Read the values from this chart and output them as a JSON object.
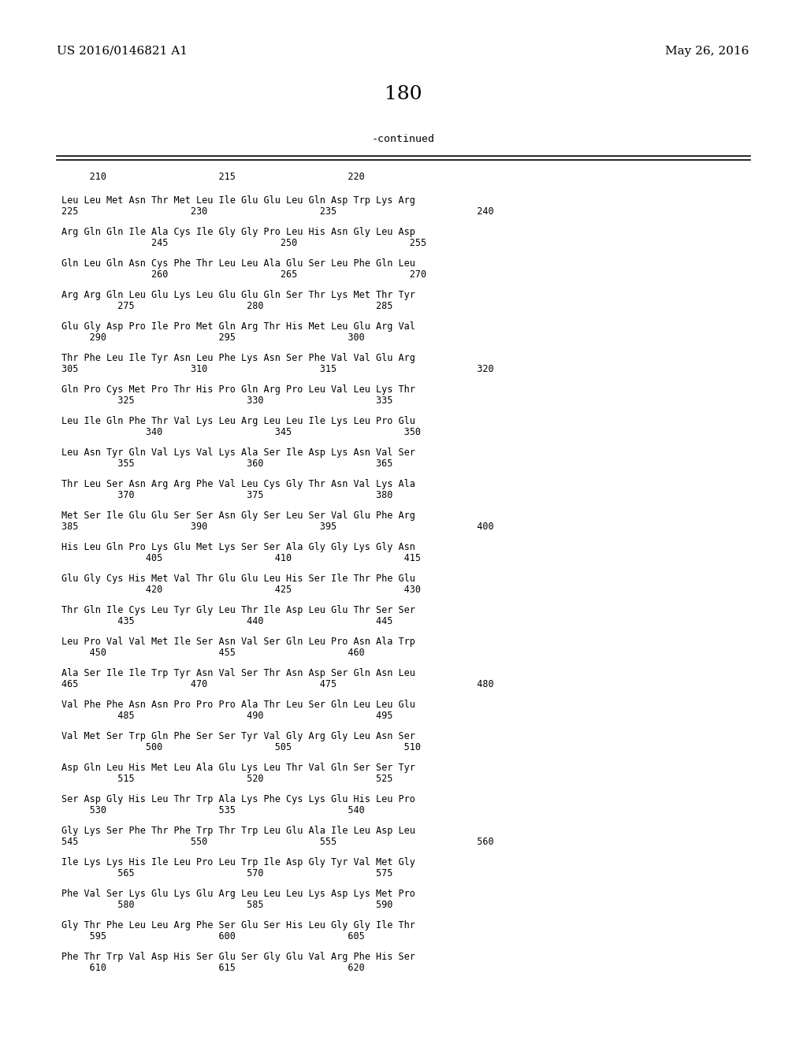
{
  "header_left": "US 2016/0146821 A1",
  "header_right": "May 26, 2016",
  "page_number": "180",
  "continued": "-continued",
  "background_color": "#ffffff",
  "ruler": "     210                    215                    220",
  "seq_lines": [
    [
      "Leu Leu Met Asn Thr Met Leu Ile Glu Glu Leu Gln Asp Trp Lys Arg",
      "225                    230                    235                         240"
    ],
    [
      "Arg Gln Gln Ile Ala Cys Ile Gly Gly Pro Leu His Asn Gly Leu Asp",
      "                245                    250                    255"
    ],
    [
      "Gln Leu Gln Asn Cys Phe Thr Leu Leu Ala Glu Ser Leu Phe Gln Leu",
      "                260                    265                    270"
    ],
    [
      "Arg Arg Gln Leu Glu Lys Leu Glu Glu Gln Ser Thr Lys Met Thr Tyr",
      "          275                    280                    285"
    ],
    [
      "Glu Gly Asp Pro Ile Pro Met Gln Arg Thr His Met Leu Glu Arg Val",
      "     290                    295                    300"
    ],
    [
      "Thr Phe Leu Ile Tyr Asn Leu Phe Lys Asn Ser Phe Val Val Glu Arg",
      "305                    310                    315                         320"
    ],
    [
      "Gln Pro Cys Met Pro Thr His Pro Gln Arg Pro Leu Val Leu Lys Thr",
      "          325                    330                    335"
    ],
    [
      "Leu Ile Gln Phe Thr Val Lys Leu Arg Leu Leu Ile Lys Leu Pro Glu",
      "               340                    345                    350"
    ],
    [
      "Leu Asn Tyr Gln Val Lys Val Lys Ala Ser Ile Asp Lys Asn Val Ser",
      "          355                    360                    365"
    ],
    [
      "Thr Leu Ser Asn Arg Arg Phe Val Leu Cys Gly Thr Asn Val Lys Ala",
      "          370                    375                    380"
    ],
    [
      "Met Ser Ile Glu Glu Ser Ser Asn Gly Ser Leu Ser Val Glu Phe Arg",
      "385                    390                    395                         400"
    ],
    [
      "His Leu Gln Pro Lys Glu Met Lys Ser Ser Ala Gly Gly Lys Gly Asn",
      "               405                    410                    415"
    ],
    [
      "Glu Gly Cys His Met Val Thr Glu Glu Leu His Ser Ile Thr Phe Glu",
      "               420                    425                    430"
    ],
    [
      "Thr Gln Ile Cys Leu Tyr Gly Leu Thr Ile Asp Leu Glu Thr Ser Ser",
      "          435                    440                    445"
    ],
    [
      "Leu Pro Val Val Met Ile Ser Asn Val Ser Gln Leu Pro Asn Ala Trp",
      "     450                    455                    460"
    ],
    [
      "Ala Ser Ile Ile Trp Tyr Asn Val Ser Thr Asn Asp Ser Gln Asn Leu",
      "465                    470                    475                         480"
    ],
    [
      "Val Phe Phe Asn Asn Pro Pro Pro Ala Thr Leu Ser Gln Leu Leu Glu",
      "          485                    490                    495"
    ],
    [
      "Val Met Ser Trp Gln Phe Ser Ser Tyr Val Gly Arg Gly Leu Asn Ser",
      "               500                    505                    510"
    ],
    [
      "Asp Gln Leu His Met Leu Ala Glu Lys Leu Thr Val Gln Ser Ser Tyr",
      "          515                    520                    525"
    ],
    [
      "Ser Asp Gly His Leu Thr Trp Ala Lys Phe Cys Lys Glu His Leu Pro",
      "     530                    535                    540"
    ],
    [
      "Gly Lys Ser Phe Thr Phe Trp Thr Trp Leu Glu Ala Ile Leu Asp Leu",
      "545                    550                    555                         560"
    ],
    [
      "Ile Lys Lys His Ile Leu Pro Leu Trp Ile Asp Gly Tyr Val Met Gly",
      "          565                    570                    575"
    ],
    [
      "Phe Val Ser Lys Glu Lys Glu Arg Leu Leu Leu Lys Asp Lys Met Pro",
      "          580                    585                    590"
    ],
    [
      "Gly Thr Phe Leu Leu Arg Phe Ser Glu Ser His Leu Gly Gly Ile Thr",
      "     595                    600                    605"
    ],
    [
      "Phe Thr Trp Val Asp His Ser Glu Ser Gly Glu Val Arg Phe His Ser",
      "     610                    615                    620"
    ]
  ]
}
